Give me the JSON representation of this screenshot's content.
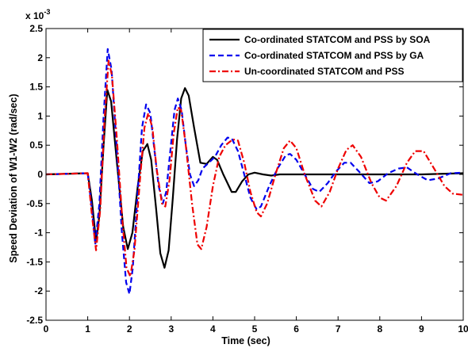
{
  "chart_data": {
    "type": "line",
    "xlabel": "Time (sec)",
    "ylabel": "Speed Deviation of W1-W2 (rad/sec)",
    "y_multiplier_label": "x 10",
    "y_multiplier_exponent": "-3",
    "xlim": [
      0,
      10
    ],
    "ylim": [
      -2.5,
      2.5
    ],
    "xticks": [
      "0",
      "1",
      "2",
      "3",
      "4",
      "5",
      "6",
      "7",
      "8",
      "9",
      "10"
    ],
    "yticks": [
      "2.5",
      "2",
      "1.5",
      "1",
      "0.5",
      "0",
      "-0.5",
      "-1",
      "-1.5",
      "-2",
      "-2.5"
    ],
    "grid": false,
    "legend_position": "top-right",
    "series": [
      {
        "name": "Co-ordinated STATCOM and PSS by SOA",
        "color": "#000000",
        "dash": "solid",
        "points": [
          [
            0,
            0
          ],
          [
            1.0,
            0.02
          ],
          [
            1.1,
            -0.45
          ],
          [
            1.2,
            -1.15
          ],
          [
            1.28,
            -0.7
          ],
          [
            1.38,
            0.5
          ],
          [
            1.47,
            1.45
          ],
          [
            1.56,
            1.25
          ],
          [
            1.7,
            0.2
          ],
          [
            1.85,
            -0.9
          ],
          [
            1.96,
            -1.28
          ],
          [
            2.07,
            -1.0
          ],
          [
            2.2,
            -0.2
          ],
          [
            2.32,
            0.4
          ],
          [
            2.43,
            0.52
          ],
          [
            2.52,
            0.25
          ],
          [
            2.64,
            -0.6
          ],
          [
            2.74,
            -1.35
          ],
          [
            2.84,
            -1.6
          ],
          [
            2.94,
            -1.3
          ],
          [
            3.04,
            -0.4
          ],
          [
            3.14,
            0.6
          ],
          [
            3.24,
            1.3
          ],
          [
            3.33,
            1.48
          ],
          [
            3.42,
            1.35
          ],
          [
            3.55,
            0.8
          ],
          [
            3.7,
            0.2
          ],
          [
            3.85,
            0.18
          ],
          [
            4.0,
            0.3
          ],
          [
            4.1,
            0.25
          ],
          [
            4.25,
            0.0
          ],
          [
            4.45,
            -0.3
          ],
          [
            4.55,
            -0.3
          ],
          [
            4.7,
            -0.12
          ],
          [
            4.85,
            0.0
          ],
          [
            5.0,
            0.03
          ],
          [
            5.2,
            0.0
          ],
          [
            5.4,
            -0.02
          ],
          [
            5.6,
            0.0
          ],
          [
            6.0,
            0.0
          ],
          [
            7.0,
            0.0
          ],
          [
            8.0,
            0.0
          ],
          [
            9.0,
            0.0
          ],
          [
            10.0,
            0.02
          ]
        ]
      },
      {
        "name": "Co-ordinated STATCOM and PSS by GA",
        "color": "#0000ee",
        "dash": "dashed",
        "points": [
          [
            0,
            0
          ],
          [
            1.0,
            0.02
          ],
          [
            1.1,
            -0.6
          ],
          [
            1.18,
            -1.2
          ],
          [
            1.28,
            -0.5
          ],
          [
            1.38,
            1.0
          ],
          [
            1.48,
            2.15
          ],
          [
            1.57,
            1.8
          ],
          [
            1.7,
            0.4
          ],
          [
            1.82,
            -1.0
          ],
          [
            1.92,
            -1.85
          ],
          [
            2.0,
            -2.05
          ],
          [
            2.08,
            -1.6
          ],
          [
            2.2,
            -0.3
          ],
          [
            2.3,
            0.8
          ],
          [
            2.4,
            1.2
          ],
          [
            2.5,
            1.05
          ],
          [
            2.6,
            0.4
          ],
          [
            2.7,
            -0.2
          ],
          [
            2.8,
            -0.5
          ],
          [
            2.88,
            -0.3
          ],
          [
            2.98,
            0.4
          ],
          [
            3.08,
            1.1
          ],
          [
            3.16,
            1.3
          ],
          [
            3.25,
            1.1
          ],
          [
            3.35,
            0.5
          ],
          [
            3.45,
            0.0
          ],
          [
            3.55,
            -0.2
          ],
          [
            3.65,
            -0.1
          ],
          [
            3.75,
            0.1
          ],
          [
            3.9,
            0.2
          ],
          [
            4.05,
            0.3
          ],
          [
            4.2,
            0.5
          ],
          [
            4.35,
            0.63
          ],
          [
            4.45,
            0.62
          ],
          [
            4.6,
            0.4
          ],
          [
            4.75,
            0.0
          ],
          [
            4.9,
            -0.4
          ],
          [
            5.05,
            -0.6
          ],
          [
            5.15,
            -0.55
          ],
          [
            5.35,
            -0.2
          ],
          [
            5.55,
            0.1
          ],
          [
            5.75,
            0.33
          ],
          [
            5.85,
            0.35
          ],
          [
            6.0,
            0.25
          ],
          [
            6.2,
            0.0
          ],
          [
            6.4,
            -0.25
          ],
          [
            6.55,
            -0.3
          ],
          [
            6.75,
            -0.15
          ],
          [
            6.95,
            0.05
          ],
          [
            7.15,
            0.2
          ],
          [
            7.3,
            0.2
          ],
          [
            7.5,
            0.05
          ],
          [
            7.75,
            -0.15
          ],
          [
            7.95,
            -0.12
          ],
          [
            8.2,
            0.02
          ],
          [
            8.45,
            0.1
          ],
          [
            8.65,
            0.12
          ],
          [
            8.9,
            0.0
          ],
          [
            9.15,
            -0.1
          ],
          [
            9.4,
            -0.07
          ],
          [
            9.7,
            0.02
          ],
          [
            10.0,
            0.03
          ]
        ]
      },
      {
        "name": "Un-coordinated STATCOM and PSS",
        "color": "#ee0000",
        "dash": "dashdot",
        "points": [
          [
            0,
            0
          ],
          [
            1.0,
            0.02
          ],
          [
            1.1,
            -0.7
          ],
          [
            1.2,
            -1.3
          ],
          [
            1.3,
            -0.6
          ],
          [
            1.4,
            0.9
          ],
          [
            1.5,
            1.95
          ],
          [
            1.58,
            1.7
          ],
          [
            1.7,
            0.6
          ],
          [
            1.83,
            -0.8
          ],
          [
            1.93,
            -1.6
          ],
          [
            2.02,
            -1.75
          ],
          [
            2.12,
            -1.3
          ],
          [
            2.25,
            -0.1
          ],
          [
            2.36,
            0.8
          ],
          [
            2.45,
            1.05
          ],
          [
            2.55,
            0.8
          ],
          [
            2.65,
            0.1
          ],
          [
            2.78,
            -0.5
          ],
          [
            2.86,
            -0.55
          ],
          [
            2.96,
            -0.1
          ],
          [
            3.06,
            0.7
          ],
          [
            3.16,
            1.15
          ],
          [
            3.24,
            1.1
          ],
          [
            3.35,
            0.5
          ],
          [
            3.5,
            -0.5
          ],
          [
            3.63,
            -1.2
          ],
          [
            3.72,
            -1.28
          ],
          [
            3.85,
            -0.9
          ],
          [
            4.0,
            -0.2
          ],
          [
            4.15,
            0.3
          ],
          [
            4.3,
            0.5
          ],
          [
            4.48,
            0.6
          ],
          [
            4.6,
            0.58
          ],
          [
            4.75,
            0.2
          ],
          [
            4.9,
            -0.3
          ],
          [
            5.05,
            -0.65
          ],
          [
            5.15,
            -0.72
          ],
          [
            5.3,
            -0.5
          ],
          [
            5.5,
            0.0
          ],
          [
            5.7,
            0.45
          ],
          [
            5.85,
            0.58
          ],
          [
            6.0,
            0.45
          ],
          [
            6.2,
            0.0
          ],
          [
            6.45,
            -0.45
          ],
          [
            6.6,
            -0.55
          ],
          [
            6.8,
            -0.3
          ],
          [
            7.0,
            0.1
          ],
          [
            7.2,
            0.42
          ],
          [
            7.35,
            0.5
          ],
          [
            7.55,
            0.3
          ],
          [
            7.8,
            -0.15
          ],
          [
            8.0,
            -0.4
          ],
          [
            8.15,
            -0.45
          ],
          [
            8.4,
            -0.2
          ],
          [
            8.65,
            0.2
          ],
          [
            8.85,
            0.4
          ],
          [
            9.05,
            0.4
          ],
          [
            9.3,
            0.1
          ],
          [
            9.55,
            -0.2
          ],
          [
            9.75,
            -0.33
          ],
          [
            10.0,
            -0.35
          ]
        ]
      }
    ]
  }
}
